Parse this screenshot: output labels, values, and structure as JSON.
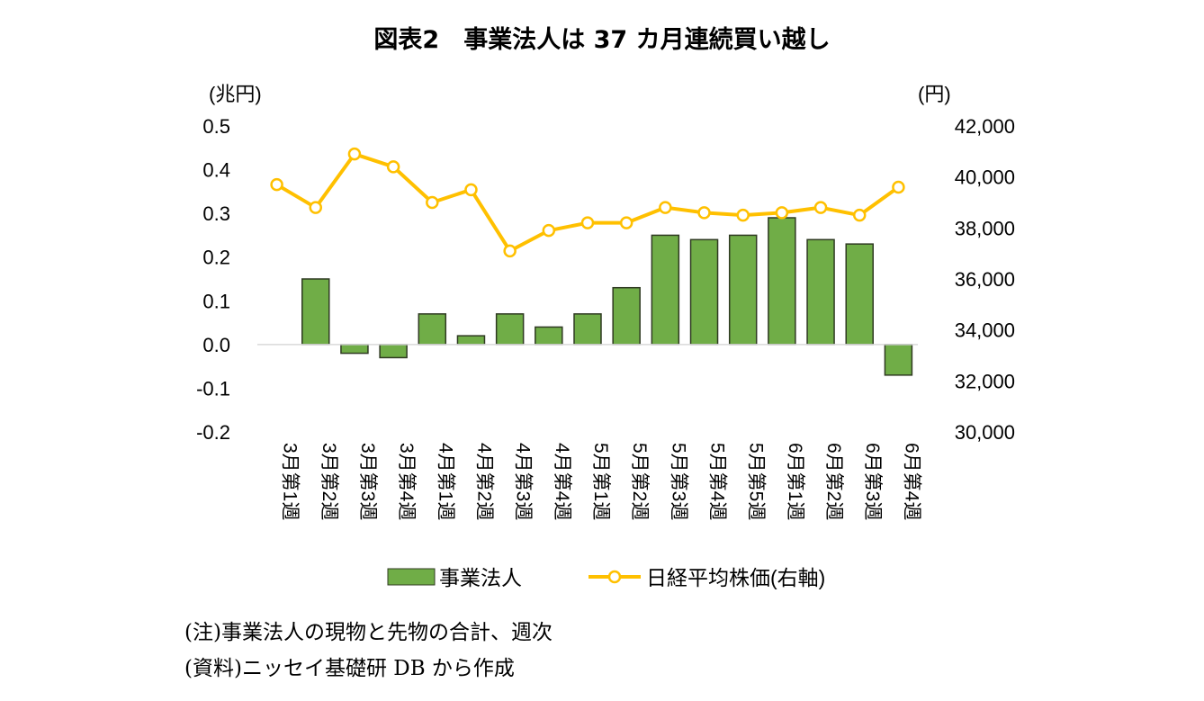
{
  "figure": {
    "title": "図表2　事業法人は 37 カ月連続買い越し",
    "note": "(注)事業法人の現物と先物の合計、週次",
    "source": "(資料)ニッセイ基礎研 DB から作成"
  },
  "chart_data": {
    "type": "bar+line",
    "categories": [
      "3月第1週",
      "3月第2週",
      "3月第3週",
      "3月第4週",
      "4月第1週",
      "4月第2週",
      "4月第3週",
      "4月第4週",
      "5月第1週",
      "5月第2週",
      "5月第3週",
      "5月第4週",
      "5月第5週",
      "6月第1週",
      "6月第2週",
      "6月第3週",
      "6月第4週"
    ],
    "left_axis": {
      "unit": "(兆円)",
      "ylim": [
        -0.2,
        0.5
      ],
      "ticks": [
        "0.5",
        "0.4",
        "0.3",
        "0.2",
        "0.1",
        "0.0",
        "-0.1",
        "-0.2"
      ]
    },
    "right_axis": {
      "unit": "(円)",
      "ylim": [
        30000,
        42000
      ],
      "ticks": [
        "42,000",
        "40,000",
        "38,000",
        "36,000",
        "34,000",
        "32,000",
        "30,000"
      ]
    },
    "series": [
      {
        "name": "事業法人",
        "type": "bar",
        "axis": "left",
        "color": "#70AD47",
        "values": [
          0.0,
          0.15,
          -0.02,
          -0.03,
          0.07,
          0.02,
          0.07,
          0.04,
          0.07,
          0.13,
          0.25,
          0.24,
          0.25,
          0.29,
          0.24,
          0.23,
          -0.07
        ]
      },
      {
        "name": "日経平均株価(右軸)",
        "type": "line",
        "axis": "right",
        "color": "#FFC000",
        "values": [
          39700,
          38800,
          40900,
          40400,
          39000,
          39500,
          37100,
          37900,
          38200,
          38200,
          38800,
          38600,
          38500,
          38600,
          38800,
          38500,
          39600
        ]
      }
    ],
    "grid": false,
    "legend": "bottom"
  }
}
